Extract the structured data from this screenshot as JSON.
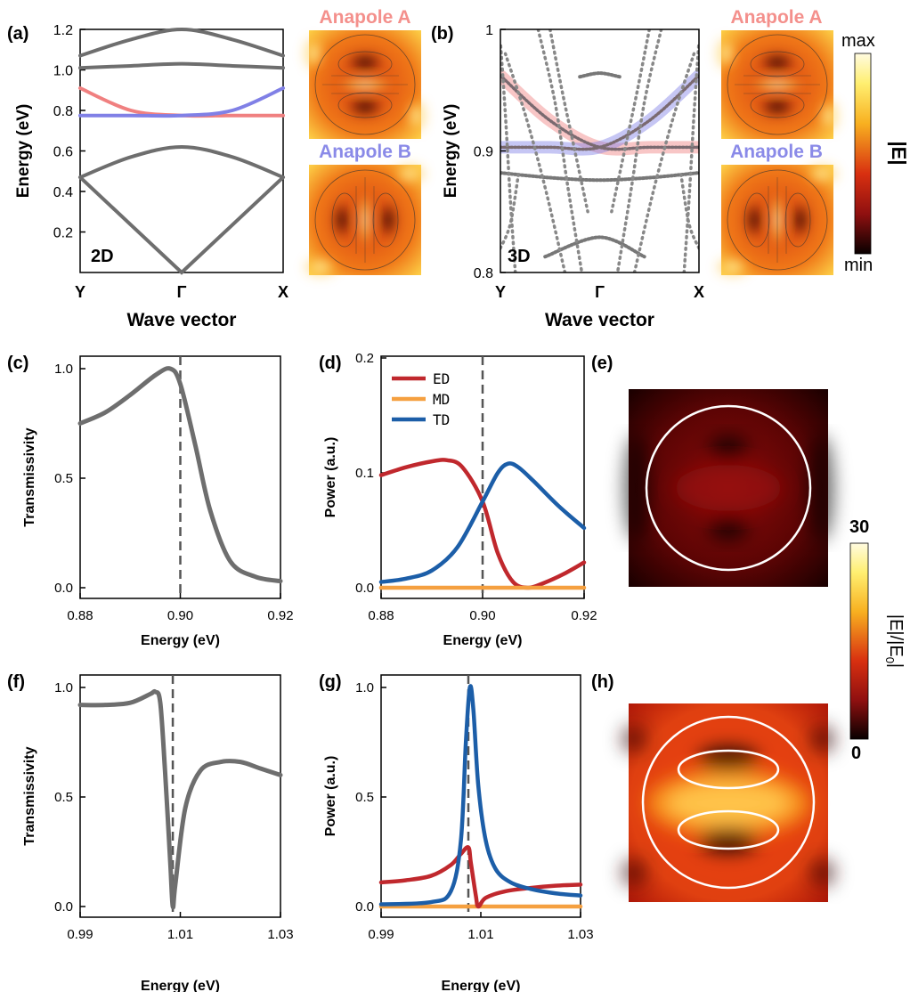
{
  "panel_labels": {
    "a": "(a)",
    "b": "(b)",
    "c": "(c)",
    "d": "(d)",
    "e": "(e)",
    "f": "(f)",
    "g": "(g)",
    "h": "(h)"
  },
  "colors": {
    "gray": "#6e6e6e",
    "anapole_a": "#f08080",
    "anapole_b": "#8080e6",
    "ed": "#c0282d",
    "md": "#f5a040",
    "td": "#1c5ea8"
  },
  "field_maps": {
    "a_top_label": "Anapole A",
    "a_bottom_label": "Anapole B",
    "b_top_label": "Anapole A",
    "b_bottom_label": "Anapole B"
  },
  "colorbar_top": {
    "label": "|E|",
    "max": "max",
    "min": "min"
  },
  "colorbar_right": {
    "label": "|E|/|E0|",
    "label_main": "|E|/|E",
    "label_sub": "0",
    "label_end": "|",
    "max": "30",
    "min": "0"
  },
  "chart_data": [
    {
      "id": "a",
      "type": "line",
      "inset_label": "2D",
      "xlabel": "Wave vector",
      "ylabel": "Energy (eV)",
      "x_ticks": [
        "Y",
        "Γ",
        "X"
      ],
      "ylim": [
        0,
        1.2
      ],
      "y_ticks": [
        "0.2",
        "0.4",
        "0.6",
        "0.8",
        "1.0",
        "1.2"
      ],
      "series": [
        {
          "name": "",
          "x": [
            -1,
            -0.5,
            0,
            0.5,
            1
          ],
          "y": [
            0.47,
            0.24,
            0.0,
            0.24,
            0.47
          ]
        },
        {
          "name": "",
          "x": [
            -1,
            -0.5,
            0,
            0.5,
            1
          ],
          "y": [
            0.47,
            0.57,
            0.62,
            0.57,
            0.47
          ]
        },
        {
          "name": "",
          "x": [
            -1,
            -0.5,
            0,
            0.5,
            1
          ],
          "y": [
            0.91,
            0.8,
            0.775,
            0.775,
            0.775
          ]
        },
        {
          "name": "",
          "x": [
            -1,
            -0.5,
            0,
            0.5,
            1
          ],
          "y": [
            0.775,
            0.775,
            0.775,
            0.8,
            0.91
          ]
        },
        {
          "name": "",
          "x": [
            -1,
            -0.5,
            0,
            0.5,
            1
          ],
          "y": [
            1.01,
            1.02,
            1.03,
            1.02,
            1.01
          ]
        },
        {
          "name": "",
          "x": [
            -1,
            -0.5,
            0,
            0.5,
            1
          ],
          "y": [
            1.07,
            1.15,
            1.2,
            1.15,
            1.07
          ]
        }
      ]
    },
    {
      "id": "b",
      "type": "scatter",
      "inset_label": "3D",
      "xlabel": "Wave vector",
      "ylabel": "Energy (eV)",
      "x_ticks": [
        "Y",
        "Γ",
        "X"
      ],
      "ylim": [
        0.8,
        1.0
      ],
      "y_ticks": [
        "0.8",
        "0.9",
        "1"
      ],
      "series": [
        {
          "name": "",
          "x": [
            -1,
            -0.5,
            0,
            0.5,
            1
          ],
          "y": [
            0.962,
            0.925,
            0.903,
            0.903,
            0.903
          ]
        },
        {
          "name": "",
          "x": [
            -1,
            -0.5,
            0,
            0.5,
            1
          ],
          "y": [
            0.903,
            0.903,
            0.903,
            0.925,
            0.962
          ]
        },
        {
          "name": "",
          "x": [
            -0.2,
            0,
            0.2
          ],
          "y": [
            0.961,
            0.964,
            0.961
          ]
        },
        {
          "name": "",
          "x": [
            -1,
            -0.5,
            0,
            0.5,
            1
          ],
          "y": [
            0.882,
            0.878,
            0.876,
            0.878,
            0.882
          ]
        },
        {
          "name": "",
          "x": [
            -0.55,
            0,
            0.45
          ],
          "y": [
            0.813,
            0.829,
            0.813
          ]
        }
      ]
    },
    {
      "id": "c",
      "type": "line",
      "xlabel": "Energy (eV)",
      "ylabel": "Transmissivity",
      "xlim": [
        0.88,
        0.92
      ],
      "ylim": [
        0,
        1.0
      ],
      "x_ticks": [
        "0.88",
        "0.90",
        "0.92"
      ],
      "y_ticks": [
        "0.0",
        "0.5",
        "1.0"
      ],
      "marker_x": 0.9,
      "series": [
        {
          "name": "",
          "x": [
            0.88,
            0.885,
            0.89,
            0.895,
            0.898,
            0.9,
            0.903,
            0.906,
            0.91,
            0.915,
            0.92
          ],
          "y": [
            0.75,
            0.8,
            0.88,
            0.97,
            1.0,
            0.93,
            0.65,
            0.35,
            0.12,
            0.05,
            0.03
          ]
        }
      ]
    },
    {
      "id": "d",
      "type": "line",
      "xlabel": "Energy (eV)",
      "ylabel": "Power (a.u.)",
      "xlim": [
        0.88,
        0.92
      ],
      "ylim": [
        0,
        0.2
      ],
      "x_ticks": [
        "0.88",
        "0.90",
        "0.92"
      ],
      "y_ticks": [
        "0.0",
        "0.1",
        "0.2"
      ],
      "marker_x": 0.9,
      "series": [
        {
          "name": "ED",
          "x": [
            0.88,
            0.885,
            0.89,
            0.893,
            0.896,
            0.9,
            0.903,
            0.906,
            0.909,
            0.912,
            0.916,
            0.92
          ],
          "y": [
            0.098,
            0.105,
            0.11,
            0.111,
            0.105,
            0.075,
            0.03,
            0.005,
            0.0,
            0.004,
            0.012,
            0.022
          ]
        },
        {
          "name": "MD",
          "x": [
            0.88,
            0.92
          ],
          "y": [
            0.0,
            0.0
          ]
        },
        {
          "name": "TD",
          "x": [
            0.88,
            0.885,
            0.89,
            0.895,
            0.9,
            0.903,
            0.905,
            0.907,
            0.91,
            0.915,
            0.92
          ],
          "y": [
            0.005,
            0.008,
            0.015,
            0.035,
            0.075,
            0.1,
            0.108,
            0.105,
            0.093,
            0.071,
            0.052
          ]
        }
      ]
    },
    {
      "id": "f",
      "type": "line",
      "xlabel": "Energy (eV)",
      "ylabel": "Transmissivity",
      "xlim": [
        0.99,
        1.03
      ],
      "ylim": [
        0,
        1.0
      ],
      "x_ticks": [
        "0.99",
        "1.01",
        "1.03"
      ],
      "y_ticks": [
        "0.0",
        "0.5",
        "1.0"
      ],
      "marker_x": 1.0085,
      "series": [
        {
          "name": "",
          "x": [
            0.99,
            0.995,
            1.0,
            1.004,
            1.005,
            1.006,
            1.007,
            1.008,
            1.0085,
            1.009,
            1.011,
            1.014,
            1.018,
            1.022,
            1.026,
            1.03
          ],
          "y": [
            0.92,
            0.92,
            0.93,
            0.97,
            0.98,
            0.93,
            0.6,
            0.2,
            0.0,
            0.1,
            0.45,
            0.62,
            0.66,
            0.66,
            0.63,
            0.6
          ]
        }
      ]
    },
    {
      "id": "g",
      "type": "line",
      "xlabel": "Energy (eV)",
      "ylabel": "Power (a.u.)",
      "xlim": [
        0.99,
        1.03
      ],
      "ylim": [
        0,
        1.0
      ],
      "x_ticks": [
        "0.99",
        "1.01",
        "1.03"
      ],
      "y_ticks": [
        "0.0",
        "0.5",
        "1.0"
      ],
      "marker_x": 1.0075,
      "series": [
        {
          "name": "ED",
          "x": [
            0.99,
            0.995,
            1.0,
            1.004,
            1.006,
            1.0075,
            1.008,
            1.009,
            1.0095,
            1.011,
            1.015,
            1.02,
            1.025,
            1.03
          ],
          "y": [
            0.11,
            0.12,
            0.14,
            0.19,
            0.24,
            0.27,
            0.2,
            0.05,
            0.0,
            0.04,
            0.07,
            0.085,
            0.095,
            0.1
          ]
        },
        {
          "name": "MD",
          "x": [
            0.99,
            1.03
          ],
          "y": [
            0.0,
            0.0
          ]
        },
        {
          "name": "TD",
          "x": [
            0.99,
            1.0,
            1.004,
            1.006,
            1.007,
            1.0078,
            1.0085,
            1.0095,
            1.011,
            1.013,
            1.016,
            1.02,
            1.025,
            1.03
          ],
          "y": [
            0.01,
            0.02,
            0.07,
            0.3,
            0.75,
            1.0,
            0.9,
            0.55,
            0.3,
            0.17,
            0.11,
            0.08,
            0.06,
            0.05
          ]
        }
      ]
    }
  ]
}
